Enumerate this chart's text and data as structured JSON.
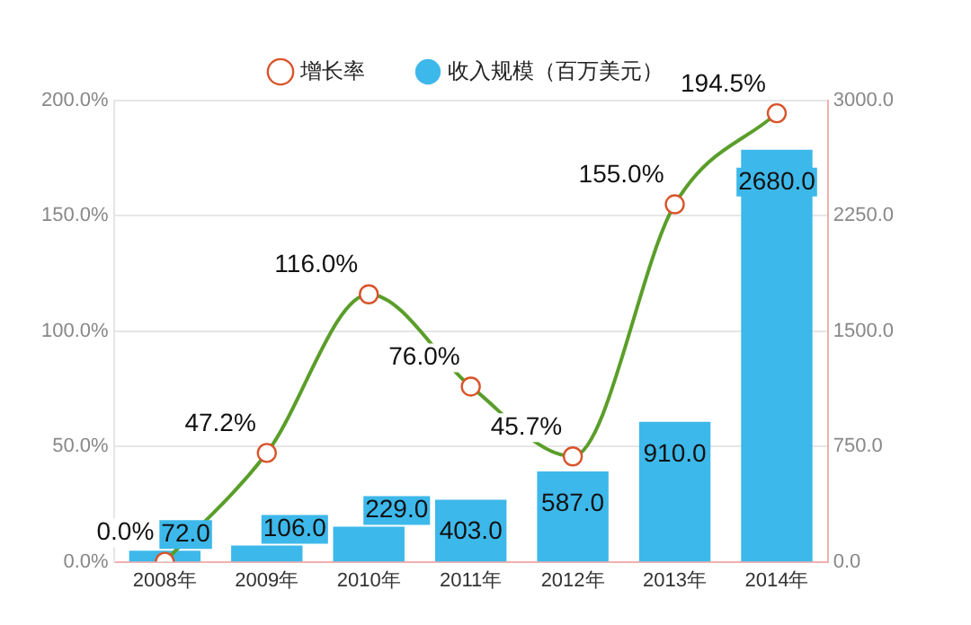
{
  "chart_data": {
    "type": "bar",
    "categories": [
      "2008年",
      "2009年",
      "2010年",
      "2011年",
      "2012年",
      "2013年",
      "2014年"
    ],
    "series": [
      {
        "name": "增长率",
        "type": "line",
        "color": "#5a9e2a",
        "values": [
          0,
          47.2,
          116,
          76,
          45.7,
          155,
          194.5
        ],
        "value_labels": [
          "0.0%",
          "47.2%",
          "116.0%",
          "76.0%",
          "45.7%",
          "155.0%",
          "194.5%"
        ]
      },
      {
        "name": "收入规模（百万美元）",
        "type": "bar",
        "axis": "y2",
        "color": "#3db8ea",
        "values": [
          72,
          106,
          229,
          403,
          587,
          910,
          2680
        ],
        "value_labels": [
          "72.0",
          "106.0",
          "229.0",
          "403.0",
          "587.0",
          "910.0",
          "2680.0"
        ]
      }
    ],
    "ylim": [
      0,
      200
    ],
    "yticks": [
      {
        "value": 0,
        "label": "0.0%"
      },
      {
        "value": 50,
        "label": "50.0%"
      },
      {
        "value": 100,
        "label": "100.0%"
      },
      {
        "value": 150,
        "label": "150.0%"
      },
      {
        "value": 200,
        "label": "200.0%"
      }
    ],
    "y2lim": [
      0,
      3000
    ],
    "y2ticks": [
      {
        "value": 0,
        "label": "0.0"
      },
      {
        "value": 750,
        "label": "750.0"
      },
      {
        "value": 1500,
        "label": "1500.0"
      },
      {
        "value": 2250,
        "label": "2250.0"
      },
      {
        "value": 3000,
        "label": "3000.0"
      }
    ],
    "grid": "y",
    "legend": "top",
    "marker": "circle"
  }
}
